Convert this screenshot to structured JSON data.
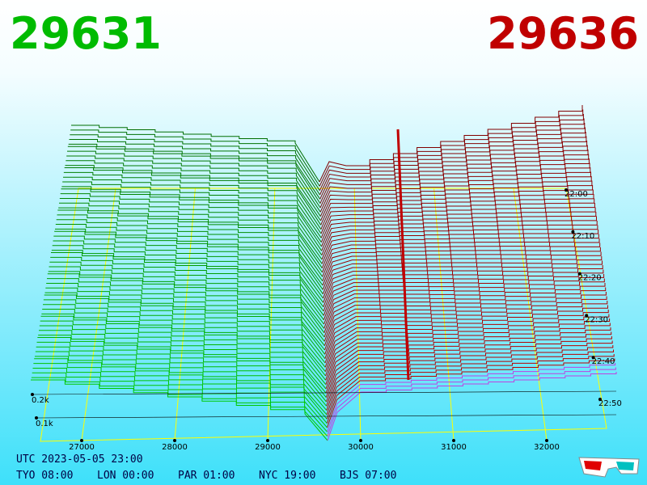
{
  "bid_price": 29631,
  "ask_price": 29636,
  "price_axis": {
    "ticks": [
      27000,
      28000,
      29000,
      30000,
      31000,
      32000
    ]
  },
  "depth_axis": {
    "ticks": [
      {
        "value": 200,
        "label": "0.2k"
      },
      {
        "value": 100,
        "label": "0.1k"
      }
    ]
  },
  "time_axis": {
    "ticks": [
      "22:00",
      "22:10",
      "22:20",
      "22:30",
      "22:40",
      "22:50"
    ]
  },
  "clock": {
    "utc": "UTC 2023-05-05 23:00",
    "zones": [
      "TYO 08:00",
      "LON 00:00",
      "PAR 01:00",
      "NYC 19:00",
      "BJS 07:00"
    ]
  }
}
